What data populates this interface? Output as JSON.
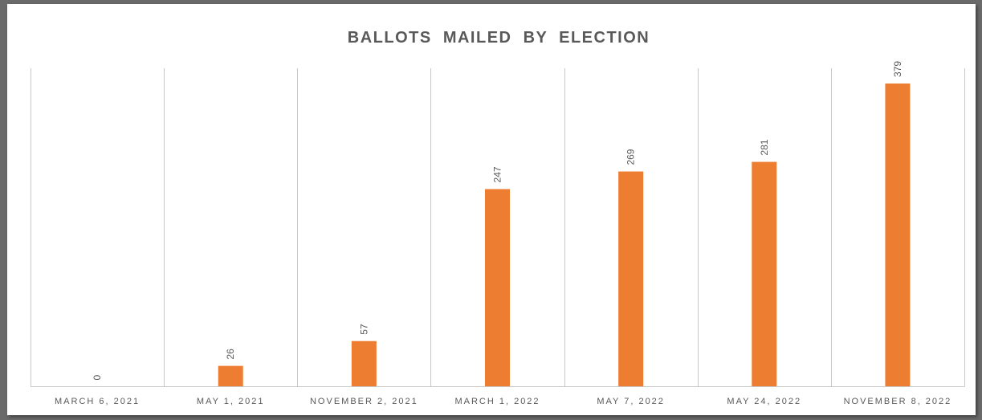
{
  "chart_data": {
    "type": "bar",
    "title": "BALLOTS  MAILED  BY  ELECTION",
    "categories": [
      "MARCH 6, 2021",
      "MAY 1, 2021",
      "NOVEMBER 2, 2021",
      "MARCH 1, 2022",
      "MAY 7, 2022",
      "MAY 24, 2022",
      "NOVEMBER 8, 2022"
    ],
    "values": [
      0,
      26,
      57,
      247,
      269,
      281,
      379
    ],
    "data_labels": [
      "0",
      "26",
      "57",
      "247",
      "269",
      "281",
      "379"
    ],
    "ylim": [
      0,
      390
    ],
    "bar_color": "#ED7D31",
    "gridlines": "vertical",
    "legend": "none"
  }
}
